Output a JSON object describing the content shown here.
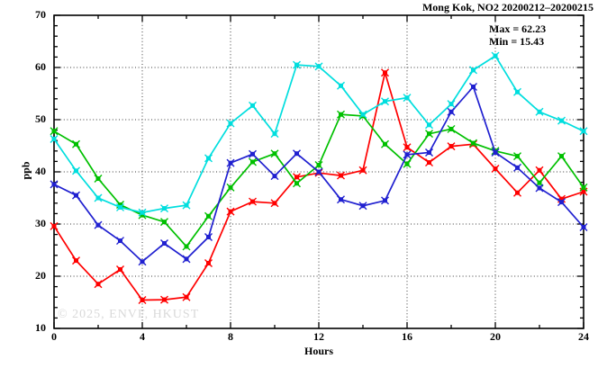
{
  "stats": {
    "max_label": "Max = 62.23",
    "min_label": "Min = 15.43"
  },
  "watermark": "© 2025, ENVF, HKUST",
  "chart_data": {
    "type": "line",
    "title": "Mong Kok, NO2 20200212–20200215",
    "xlabel": "Hours",
    "ylabel": "ppb",
    "xlim": [
      0,
      24
    ],
    "ylim": [
      10,
      70
    ],
    "x_major_ticks": [
      0,
      4,
      8,
      12,
      16,
      20,
      24
    ],
    "y_major_ticks": [
      10,
      20,
      30,
      40,
      50,
      60,
      70
    ],
    "x_minor_step": 2,
    "y_minor_step": 2,
    "grid": "dotted-at-major-ticks",
    "legend": "none",
    "marker": "box-with-x",
    "max": 62.23,
    "min": 15.43,
    "x": [
      0,
      1,
      2,
      3,
      4,
      5,
      6,
      7,
      8,
      9,
      10,
      11,
      12,
      13,
      14,
      15,
      16,
      17,
      18,
      19,
      20,
      21,
      22,
      23,
      24
    ],
    "series": [
      {
        "name": "red",
        "color": "#ff0000",
        "values": [
          29.6,
          23.0,
          18.5,
          21.3,
          15.43,
          15.5,
          16.0,
          22.5,
          32.4,
          34.3,
          34.0,
          39.0,
          39.8,
          39.3,
          40.3,
          59.0,
          44.7,
          41.8,
          44.9,
          45.3,
          40.6,
          36.0,
          40.3,
          34.8,
          36.2
        ]
      },
      {
        "name": "green",
        "color": "#00c000",
        "values": [
          47.8,
          45.3,
          38.7,
          33.7,
          31.7,
          30.4,
          25.7,
          31.5,
          37.0,
          41.9,
          43.5,
          37.8,
          41.3,
          51.0,
          50.7,
          45.3,
          41.5,
          47.3,
          48.2,
          45.5,
          44.0,
          43.0,
          37.9,
          43.0,
          37.0
        ]
      },
      {
        "name": "blue",
        "color": "#2020d0",
        "values": [
          37.6,
          35.5,
          29.8,
          26.8,
          22.8,
          26.3,
          23.3,
          27.5,
          41.7,
          43.4,
          39.2,
          43.5,
          40.0,
          34.7,
          33.5,
          34.5,
          43.3,
          43.7,
          51.5,
          56.3,
          43.7,
          40.8,
          36.9,
          34.2,
          29.4
        ]
      },
      {
        "name": "cyan",
        "color": "#00dede",
        "values": [
          46.3,
          40.2,
          35.0,
          33.2,
          32.2,
          33.0,
          33.6,
          42.6,
          49.3,
          52.7,
          47.3,
          60.5,
          60.2,
          56.5,
          51.0,
          53.5,
          54.2,
          49.0,
          53.0,
          59.5,
          62.23,
          55.3,
          51.5,
          49.8,
          47.8
        ]
      }
    ]
  }
}
